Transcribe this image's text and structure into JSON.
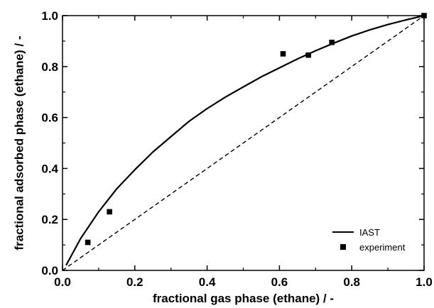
{
  "chart_data": {
    "type": "line",
    "xlabel": "fractional gas phase (ethane) / -",
    "ylabel": "fractional adsorbed phase (ethane) / -",
    "xlim": [
      0,
      1
    ],
    "ylim": [
      0,
      1
    ],
    "x_ticks": [
      0.0,
      0.2,
      0.4,
      0.6,
      0.8,
      1.0
    ],
    "y_ticks": [
      0.0,
      0.2,
      0.4,
      0.6,
      0.8,
      1.0
    ],
    "x_tick_labels": [
      "0.0",
      "0.2",
      "0.4",
      "0.6",
      "0.8",
      "1.0"
    ],
    "y_tick_labels": [
      "0.0",
      "0.2",
      "0.4",
      "0.6",
      "0.8",
      "1.0"
    ],
    "grid": false,
    "legend_position": "bottom-right",
    "series": [
      {
        "name": "IAST",
        "type": "line",
        "style": "solid",
        "x": [
          0.01,
          0.05,
          0.1,
          0.15,
          0.2,
          0.25,
          0.3,
          0.35,
          0.4,
          0.45,
          0.5,
          0.55,
          0.6,
          0.65,
          0.7,
          0.75,
          0.8,
          0.85,
          0.9,
          0.95,
          1.0
        ],
        "y": [
          0.02,
          0.125,
          0.23,
          0.32,
          0.395,
          0.465,
          0.525,
          0.585,
          0.635,
          0.68,
          0.72,
          0.76,
          0.795,
          0.83,
          0.862,
          0.892,
          0.92,
          0.944,
          0.965,
          0.983,
          1.0
        ]
      },
      {
        "name": "experiment",
        "type": "scatter",
        "x": [
          0.07,
          0.13,
          0.61,
          0.68,
          0.745,
          1.0
        ],
        "y": [
          0.11,
          0.23,
          0.85,
          0.845,
          0.895,
          1.0
        ]
      },
      {
        "type": "line",
        "style": "dashed",
        "x": [
          0.0,
          1.0
        ],
        "y": [
          0.0,
          1.0
        ]
      }
    ]
  }
}
